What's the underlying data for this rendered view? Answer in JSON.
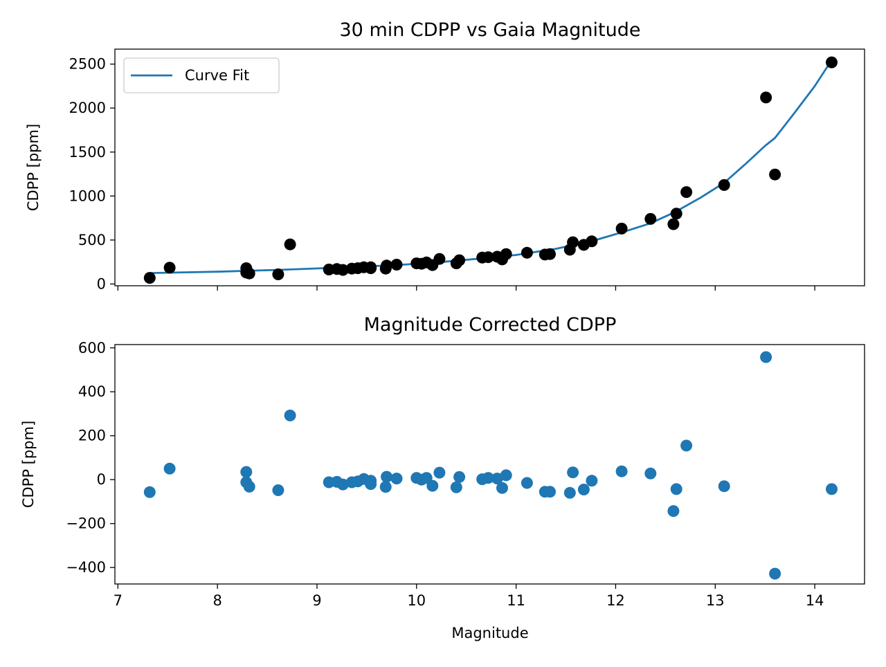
{
  "chart_data": [
    {
      "type": "scatter",
      "title": "30 min CDPP vs Gaia Magnitude",
      "xlabel": "",
      "ylabel": "CDPP [ppm]",
      "xlim": [
        6.97,
        14.5
      ],
      "ylim": [
        -20,
        2670
      ],
      "xticks": [
        7,
        8,
        9,
        10,
        11,
        12,
        13,
        14
      ],
      "xtick_labels_visible": false,
      "yticks": [
        0,
        500,
        1000,
        1500,
        2000,
        2500
      ],
      "legend": {
        "position": "top-left",
        "entries": [
          "Curve Fit"
        ]
      },
      "series": [
        {
          "kind": "scatter",
          "color": "#000000",
          "x": [
            7.32,
            7.52,
            8.29,
            8.29,
            8.32,
            8.61,
            8.73,
            9.12,
            9.2,
            9.26,
            9.35,
            9.41,
            9.47,
            9.54,
            9.54,
            9.69,
            9.7,
            9.8,
            10.0,
            10.05,
            10.1,
            10.16,
            10.23,
            10.4,
            10.43,
            10.66,
            10.72,
            10.81,
            10.86,
            10.9,
            11.11,
            11.29,
            11.34,
            11.54,
            11.57,
            11.68,
            11.76,
            12.06,
            12.35,
            12.58,
            12.61,
            12.71,
            13.09,
            13.51,
            13.6,
            14.17
          ],
          "y": [
            70,
            185,
            180,
            130,
            120,
            110,
            450,
            165,
            170,
            160,
            175,
            180,
            190,
            180,
            190,
            175,
            210,
            220,
            235,
            230,
            245,
            215,
            285,
            235,
            270,
            300,
            305,
            310,
            280,
            340,
            355,
            335,
            340,
            390,
            475,
            445,
            485,
            630,
            740,
            680,
            800,
            1045,
            1125,
            2120,
            1245,
            2520
          ]
        },
        {
          "kind": "line",
          "name": "Curve Fit",
          "color": "#1f77b4",
          "x": [
            7.32,
            8.0,
            8.6,
            9.2,
            9.8,
            10.2,
            10.6,
            11.0,
            11.4,
            11.8,
            12.1,
            12.35,
            12.6,
            12.85,
            13.09,
            13.3,
            13.5,
            13.6,
            13.8,
            14.0,
            14.17
          ],
          "y": [
            125,
            140,
            160,
            185,
            215,
            245,
            285,
            330,
            400,
            500,
            600,
            690,
            820,
            980,
            1150,
            1360,
            1570,
            1660,
            1950,
            2250,
            2545
          ]
        }
      ]
    },
    {
      "type": "scatter",
      "title": "Magnitude Corrected CDPP",
      "xlabel": "Magnitude",
      "ylabel": "CDPP [ppm]",
      "xlim": [
        6.97,
        14.5
      ],
      "ylim": [
        -475,
        615
      ],
      "xticks": [
        7,
        8,
        9,
        10,
        11,
        12,
        13,
        14
      ],
      "yticks": [
        -400,
        -200,
        0,
        200,
        400,
        600
      ],
      "series": [
        {
          "kind": "scatter",
          "color": "#1f77b4",
          "x": [
            7.32,
            7.52,
            8.29,
            8.29,
            8.32,
            8.61,
            8.73,
            9.12,
            9.2,
            9.26,
            9.35,
            9.41,
            9.47,
            9.54,
            9.54,
            9.69,
            9.7,
            9.8,
            10.0,
            10.05,
            10.1,
            10.16,
            10.23,
            10.4,
            10.43,
            10.66,
            10.72,
            10.81,
            10.86,
            10.9,
            11.11,
            11.29,
            11.34,
            11.54,
            11.57,
            11.68,
            11.76,
            12.06,
            12.35,
            12.58,
            12.61,
            12.71,
            13.09,
            13.51,
            13.6,
            14.17
          ],
          "y": [
            -57,
            50,
            35,
            -12,
            -32,
            -48,
            292,
            -12,
            -10,
            -22,
            -12,
            -8,
            3,
            -5,
            -20,
            -33,
            13,
            5,
            8,
            0,
            8,
            -28,
            32,
            -35,
            12,
            2,
            8,
            5,
            -38,
            20,
            -15,
            -55,
            -55,
            -60,
            33,
            -45,
            -5,
            38,
            28,
            -143,
            -43,
            155,
            -30,
            558,
            -428,
            -43
          ]
        }
      ]
    }
  ]
}
